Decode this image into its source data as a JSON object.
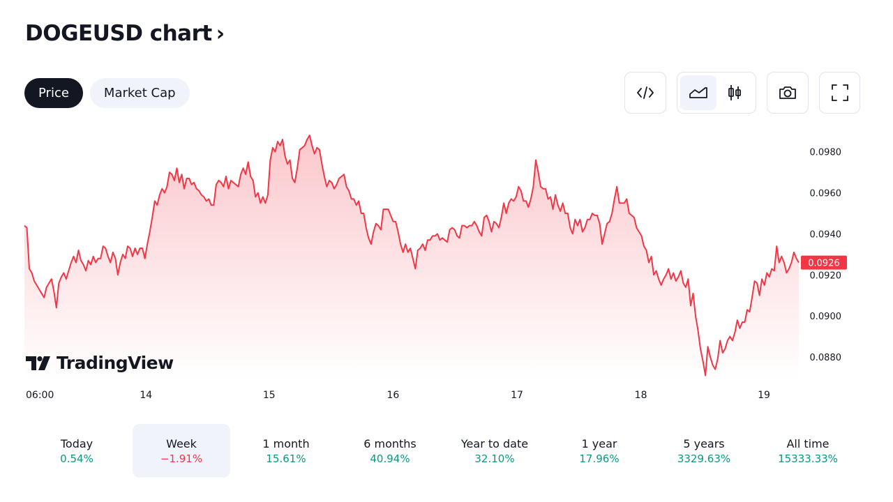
{
  "header": {
    "title": "DOGEUSD chart",
    "chevron": "›"
  },
  "tabs": [
    {
      "label": "Price",
      "active": true
    },
    {
      "label": "Market Cap",
      "active": false
    }
  ],
  "toolbar": {
    "embed_icon": "code-icon",
    "area_icon": "area-chart-icon",
    "candle_icon": "candlestick-icon",
    "snapshot_icon": "camera-icon",
    "fullscreen_icon": "fullscreen-icon"
  },
  "watermark": {
    "text": "TradingView"
  },
  "chart_data": {
    "type": "area",
    "series": [
      {
        "values": [
          0.0944,
          0.0943,
          0.0923,
          0.0921,
          0.0917,
          0.0915,
          0.0913,
          0.0911,
          0.0909,
          0.0914,
          0.0916,
          0.0918,
          0.0912,
          0.0904,
          0.0916,
          0.0919,
          0.0921,
          0.0918,
          0.0922,
          0.0926,
          0.0929,
          0.0926,
          0.0932,
          0.0927,
          0.0925,
          0.0922,
          0.0927,
          0.0925,
          0.0929,
          0.0926,
          0.0928,
          0.0928,
          0.0934,
          0.0933,
          0.0929,
          0.0926,
          0.0931,
          0.0928,
          0.092,
          0.0926,
          0.093,
          0.0928,
          0.0934,
          0.0933,
          0.0929,
          0.0933,
          0.093,
          0.0933,
          0.0933,
          0.0928,
          0.0935,
          0.0941,
          0.0948,
          0.0956,
          0.0954,
          0.0959,
          0.0962,
          0.096,
          0.0963,
          0.097,
          0.0969,
          0.0966,
          0.0972,
          0.0965,
          0.0969,
          0.0962,
          0.0967,
          0.0967,
          0.0964,
          0.0965,
          0.0962,
          0.0961,
          0.0959,
          0.0958,
          0.0956,
          0.0957,
          0.0954,
          0.0954,
          0.0964,
          0.0966,
          0.0965,
          0.0963,
          0.0968,
          0.0962,
          0.0966,
          0.0965,
          0.0964,
          0.0963,
          0.0969,
          0.0972,
          0.0969,
          0.0975,
          0.0968,
          0.0966,
          0.0958,
          0.096,
          0.0955,
          0.0958,
          0.0955,
          0.0959,
          0.0976,
          0.0982,
          0.098,
          0.0985,
          0.0983,
          0.0986,
          0.0978,
          0.0974,
          0.0976,
          0.0967,
          0.0965,
          0.0972,
          0.0981,
          0.0982,
          0.0983,
          0.0986,
          0.0988,
          0.0983,
          0.0979,
          0.0982,
          0.0981,
          0.0974,
          0.0968,
          0.0963,
          0.0966,
          0.0965,
          0.0962,
          0.0964,
          0.0967,
          0.0968,
          0.0969,
          0.0963,
          0.0961,
          0.0957,
          0.0957,
          0.0954,
          0.0956,
          0.095,
          0.095,
          0.0943,
          0.0938,
          0.0935,
          0.0941,
          0.0945,
          0.0944,
          0.0942,
          0.0952,
          0.0952,
          0.0952,
          0.0949,
          0.0946,
          0.0946,
          0.0941,
          0.0935,
          0.0931,
          0.0935,
          0.0931,
          0.0933,
          0.0928,
          0.0923,
          0.0932,
          0.0933,
          0.0935,
          0.0932,
          0.0937,
          0.0937,
          0.0939,
          0.0939,
          0.094,
          0.0937,
          0.0938,
          0.0937,
          0.0936,
          0.0942,
          0.0943,
          0.0942,
          0.0939,
          0.0938,
          0.0944,
          0.0944,
          0.0943,
          0.0944,
          0.0944,
          0.0946,
          0.0944,
          0.0941,
          0.0939,
          0.0948,
          0.0949,
          0.0946,
          0.0941,
          0.0946,
          0.0945,
          0.0943,
          0.0948,
          0.0955,
          0.095,
          0.0955,
          0.0957,
          0.0956,
          0.0958,
          0.0963,
          0.0961,
          0.0956,
          0.0956,
          0.0953,
          0.0957,
          0.0963,
          0.0976,
          0.097,
          0.0963,
          0.0962,
          0.0962,
          0.0957,
          0.0958,
          0.0952,
          0.0959,
          0.0954,
          0.0951,
          0.0955,
          0.095,
          0.095,
          0.0943,
          0.094,
          0.0947,
          0.0944,
          0.0947,
          0.0941,
          0.0943,
          0.0947,
          0.0947,
          0.095,
          0.0949,
          0.0949,
          0.0945,
          0.0935,
          0.094,
          0.0945,
          0.0946,
          0.095,
          0.0957,
          0.0963,
          0.0955,
          0.0955,
          0.0955,
          0.0957,
          0.095,
          0.0949,
          0.0948,
          0.0943,
          0.0941,
          0.0939,
          0.0934,
          0.0932,
          0.0926,
          0.0929,
          0.092,
          0.0922,
          0.0918,
          0.0915,
          0.0918,
          0.092,
          0.0923,
          0.0918,
          0.0921,
          0.0917,
          0.0919,
          0.0922,
          0.0916,
          0.0914,
          0.0918,
          0.0905,
          0.0911,
          0.09,
          0.0893,
          0.0884,
          0.0878,
          0.0871,
          0.0885,
          0.088,
          0.0876,
          0.0874,
          0.0879,
          0.0888,
          0.0882,
          0.0884,
          0.0888,
          0.089,
          0.0888,
          0.0892,
          0.0898,
          0.0894,
          0.0897,
          0.0897,
          0.0903,
          0.0902,
          0.0909,
          0.0917,
          0.0916,
          0.091,
          0.0918,
          0.0915,
          0.0921,
          0.0919,
          0.0923,
          0.0922,
          0.0934,
          0.0926,
          0.0929,
          0.0926,
          0.0921,
          0.0923,
          0.0926,
          0.0931,
          0.0928,
          0.0926
        ]
      }
    ],
    "y_ticks": [
      "0.0980",
      "0.0960",
      "0.0940",
      "0.0920",
      "0.0900",
      "0.0880"
    ],
    "y_tick_values": [
      0.098,
      0.096,
      0.094,
      0.092,
      0.09,
      0.088
    ],
    "ylim": [
      0.08688,
      0.09962
    ],
    "x_ticks": [
      "06:00",
      "14",
      "15",
      "16",
      "17",
      "18",
      "19"
    ],
    "x_tick_positions": [
      0,
      0.139,
      0.298,
      0.458,
      0.618,
      0.778,
      0.937
    ],
    "last_price_label": "0.0926",
    "last_price_value": 0.0926,
    "grid": false,
    "line_color": "#f23645",
    "fill_top": "#f23645",
    "fill_bottom": "#ffffff"
  },
  "periods": [
    {
      "label": "Today",
      "value": "0.54%",
      "sign": "pos",
      "selected": false
    },
    {
      "label": "Week",
      "value": "−1.91%",
      "sign": "neg",
      "selected": true
    },
    {
      "label": "1 month",
      "value": "15.61%",
      "sign": "pos",
      "selected": false
    },
    {
      "label": "6 months",
      "value": "40.94%",
      "sign": "pos",
      "selected": false
    },
    {
      "label": "Year to date",
      "value": "32.10%",
      "sign": "pos",
      "selected": false
    },
    {
      "label": "1 year",
      "value": "17.96%",
      "sign": "pos",
      "selected": false
    },
    {
      "label": "5 years",
      "value": "3329.63%",
      "sign": "pos",
      "selected": false
    },
    {
      "label": "All time",
      "value": "15333.33%",
      "sign": "pos",
      "selected": false
    }
  ]
}
